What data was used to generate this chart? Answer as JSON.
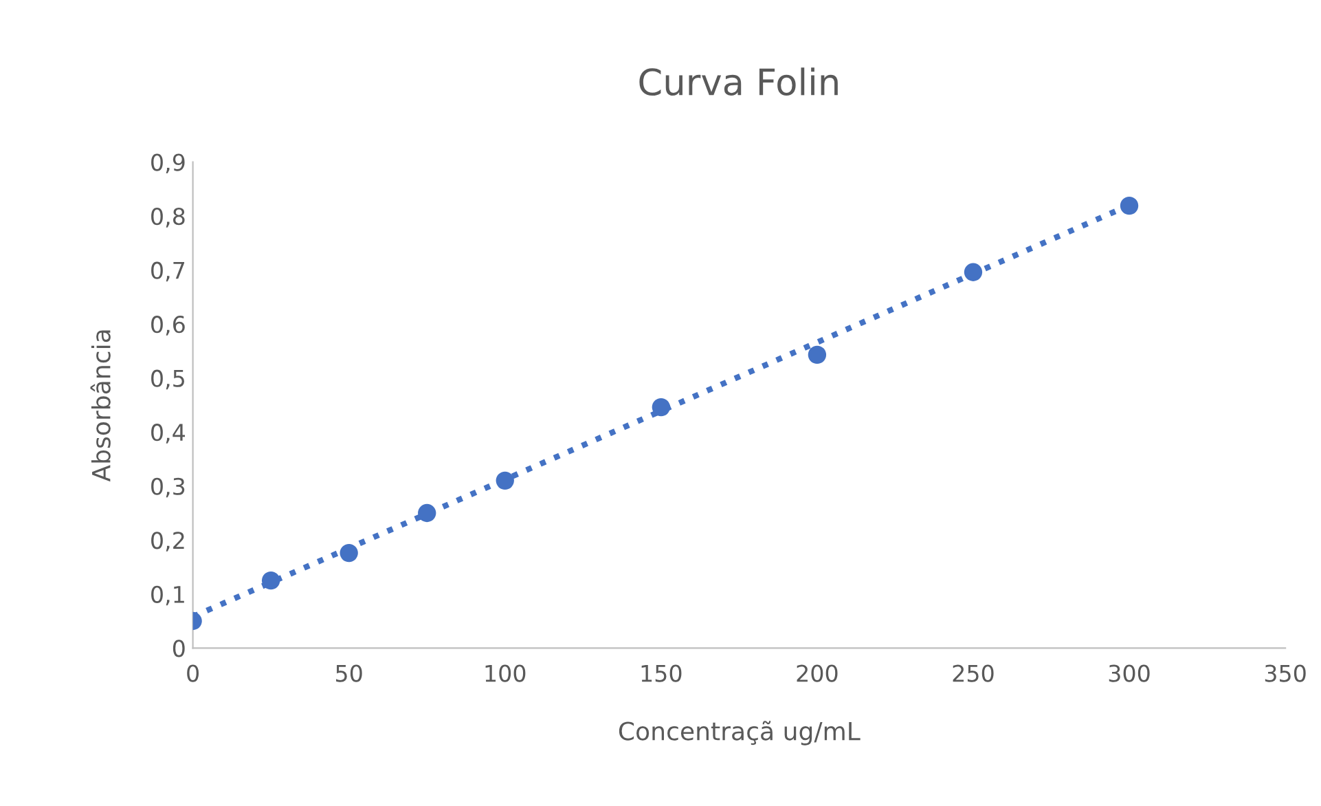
{
  "chart_data": {
    "type": "scatter",
    "title": "Curva Folin",
    "xlabel": "Concentraçã ug/mL",
    "ylabel": "Absorbância",
    "xlim": [
      0,
      350
    ],
    "xticks": [
      0,
      50,
      100,
      150,
      200,
      250,
      300,
      350
    ],
    "ylim": [
      0,
      0.9
    ],
    "yticks": [
      0,
      {
        "value": 0.1,
        "label": "0,1"
      },
      {
        "value": 0.2,
        "label": "0,2"
      },
      {
        "value": 0.3,
        "label": "0,3"
      },
      {
        "value": 0.4,
        "label": "0,4"
      },
      {
        "value": 0.5,
        "label": "0,5"
      },
      {
        "value": 0.6,
        "label": "0,6"
      },
      {
        "value": 0.7,
        "label": "0,7"
      },
      {
        "value": 0.8,
        "label": "0,8"
      },
      {
        "value": 0.9,
        "label": "0,9"
      }
    ],
    "grid": false,
    "legend": false,
    "series": [
      {
        "color": "#4472c4",
        "marker": "circle",
        "x": [
          0,
          25,
          50,
          75,
          100,
          150,
          200,
          250,
          300
        ],
        "values": [
          0.05,
          0.125,
          0.176,
          0.25,
          0.31,
          0.446,
          0.543,
          0.696,
          0.819
        ]
      },
      {
        "type": "line",
        "color": "#4472c4",
        "marker": "none",
        "line_style": "dotted",
        "x": [
          0,
          300
        ],
        "values": [
          0.058,
          0.82
        ]
      }
    ]
  }
}
